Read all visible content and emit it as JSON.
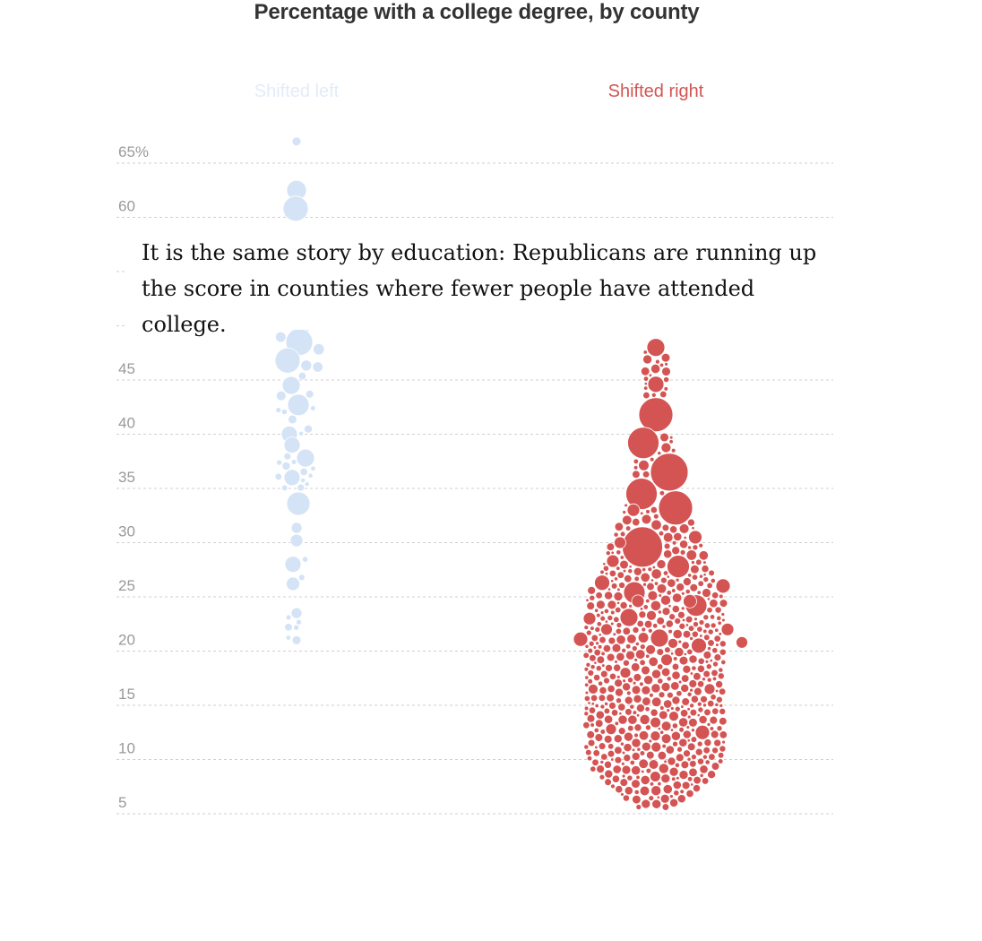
{
  "chart_data": {
    "type": "scatter",
    "subtype": "beeswarm",
    "title": "Percentage with a college degree, by county",
    "ylabel": "",
    "ylim": [
      4,
      68
    ],
    "y_ticks": [
      {
        "value": 65,
        "label": "65%"
      },
      {
        "value": 60,
        "label": "60"
      },
      {
        "value": 55,
        "label": ""
      },
      {
        "value": 50,
        "label": ""
      },
      {
        "value": 45,
        "label": "45"
      },
      {
        "value": 40,
        "label": "40"
      },
      {
        "value": 35,
        "label": "35"
      },
      {
        "value": 30,
        "label": "30"
      },
      {
        "value": 25,
        "label": "25"
      },
      {
        "value": 20,
        "label": "20"
      },
      {
        "value": 15,
        "label": "15"
      },
      {
        "value": 10,
        "label": "10"
      },
      {
        "value": 5,
        "label": "5"
      }
    ],
    "grid": true,
    "series": [
      {
        "name": "Shifted left",
        "color": "#d4e3f6",
        "label_color": "#e3ecf8",
        "approx_count": 70,
        "range": [
          21,
          67
        ],
        "points": [
          {
            "y": 67,
            "size": 1
          },
          {
            "y": 62.5,
            "size": 2.2
          },
          {
            "y": 60.8,
            "size": 2.8
          },
          {
            "y": 49.8,
            "size": 2
          },
          {
            "y": 48.5,
            "size": 3
          },
          {
            "y": 46.8,
            "size": 2.8
          },
          {
            "y": 44.5,
            "size": 2
          },
          {
            "y": 42.7,
            "size": 2.4
          },
          {
            "y": 40.0,
            "size": 1.8
          },
          {
            "y": 39.0,
            "size": 1.8
          },
          {
            "y": 37.8,
            "size": 2
          },
          {
            "y": 36.0,
            "size": 1.8
          },
          {
            "y": 33.6,
            "size": 2.6
          },
          {
            "y": 30.2,
            "size": 1.4
          },
          {
            "y": 28.0,
            "size": 1.8
          },
          {
            "y": 26.2,
            "size": 1.5
          },
          {
            "y": 23.5,
            "size": 1.2
          },
          {
            "y": 21.0,
            "size": 1
          }
        ]
      },
      {
        "name": "Shifted right",
        "color": "#d35453",
        "label_color": "#d35453",
        "approx_count": 2300,
        "range": [
          5.5,
          48
        ],
        "points": [
          {
            "y": 48.0,
            "size": 2
          },
          {
            "y": 44.6,
            "size": 1.8
          },
          {
            "y": 41.8,
            "size": 3.8
          },
          {
            "y": 39.2,
            "size": 3.5
          },
          {
            "y": 36.5,
            "size": 4.2
          },
          {
            "y": 34.5,
            "size": 3.5
          },
          {
            "y": 33.2,
            "size": 3.8
          },
          {
            "y": 29.6,
            "size": 4.5
          },
          {
            "y": 27.8,
            "size": 2.5
          },
          {
            "y": 25.4,
            "size": 2.4
          },
          {
            "y": 24.2,
            "size": 2.4
          },
          {
            "y": 23.1,
            "size": 2
          },
          {
            "y": 21.2,
            "size": 2
          },
          {
            "y": 12.5,
            "size": 1.6
          }
        ]
      }
    ]
  },
  "annotation": {
    "text": "It is the same story by education: Republicans are running up the score in counties where fewer people have attended college."
  }
}
